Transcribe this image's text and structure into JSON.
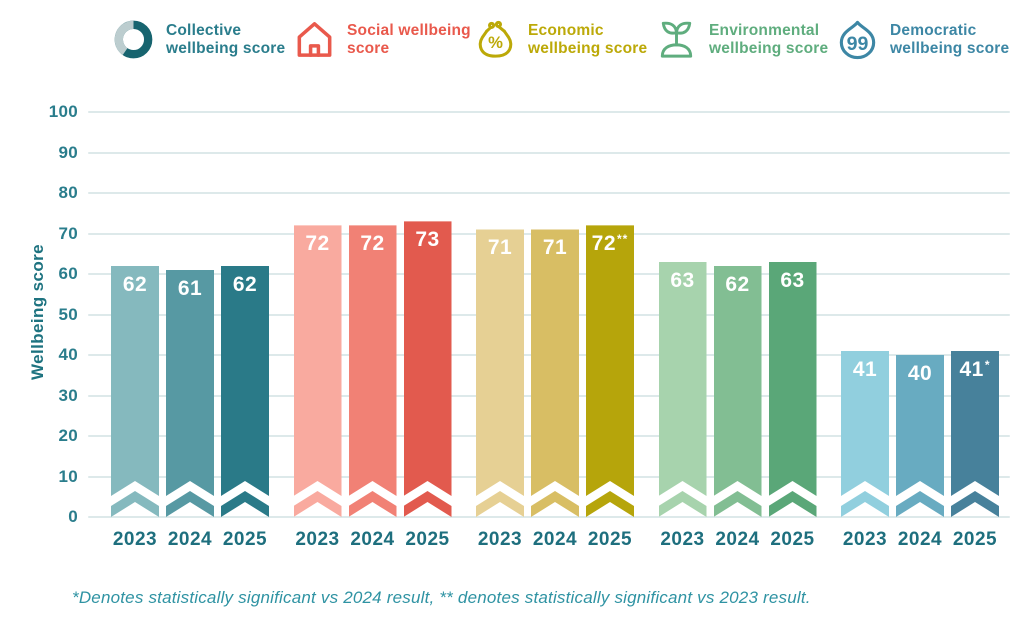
{
  "legend": {
    "items": [
      {
        "id": "collective",
        "label": "Collective wellbeing score",
        "icon": "donut-icon",
        "color": "#2a7d8c"
      },
      {
        "id": "social",
        "label": "Social wellbeing score",
        "icon": "house-icon",
        "color": "#e9594c"
      },
      {
        "id": "economic",
        "label": "Economic wellbeing score",
        "icon": "purse-percent-icon",
        "color": "#bca908"
      },
      {
        "id": "environmental",
        "label": "Environmental wellbeing score",
        "icon": "sprout-icon",
        "color": "#5fad7e"
      },
      {
        "id": "democratic",
        "label": "Democratic wellbeing score",
        "icon": "quote-bubble-icon",
        "color": "#3d87a5"
      }
    ]
  },
  "chart_data": {
    "type": "bar",
    "title": "",
    "xlabel": "",
    "ylabel": "Wellbeing score",
    "ylim": [
      0,
      100
    ],
    "yticks": [
      0,
      10,
      20,
      30,
      40,
      50,
      60,
      70,
      80,
      90,
      100
    ],
    "grid": "horizontal",
    "legend_position": "top",
    "categories": [
      "2023",
      "2024",
      "2025"
    ],
    "series": [
      {
        "name": "Collective wellbeing score",
        "values": [
          62,
          61,
          62
        ],
        "labels": [
          "62",
          "61",
          "62"
        ],
        "colors": [
          "#85b9be",
          "#5799a3",
          "#2a7a88"
        ]
      },
      {
        "name": "Social wellbeing score",
        "values": [
          72,
          72,
          73
        ],
        "labels": [
          "72",
          "72",
          "73"
        ],
        "colors": [
          "#f9aa9f",
          "#f18175",
          "#e25a4e"
        ]
      },
      {
        "name": "Economic wellbeing score",
        "values": [
          71,
          71,
          72
        ],
        "labels": [
          "71",
          "71",
          "72**"
        ],
        "colors": [
          "#e6d094",
          "#d8be64",
          "#b6a50b"
        ]
      },
      {
        "name": "Environmental wellbeing score",
        "values": [
          63,
          62,
          63
        ],
        "labels": [
          "63",
          "62",
          "63"
        ],
        "colors": [
          "#a7d3ad",
          "#82be93",
          "#5aa778"
        ]
      },
      {
        "name": "Democratic wellbeing score",
        "values": [
          41,
          40,
          41
        ],
        "labels": [
          "41",
          "40",
          "41*"
        ],
        "colors": [
          "#91cfde",
          "#68abc1",
          "#47819b"
        ]
      }
    ]
  },
  "footnote": "*Denotes statistically significant vs 2024 result, ** denotes statistically significant vs 2023 result.",
  "colors": {
    "axis_text": "#2a7d8c",
    "ylabel_text": "#1e7380",
    "year_label": "#1e6f7e",
    "value_label": "#ffffff",
    "grid": "#dde9ea",
    "footnote": "#2f93a3",
    "donut_ring": "#17646f",
    "donut_segment": "#bccdcf"
  }
}
